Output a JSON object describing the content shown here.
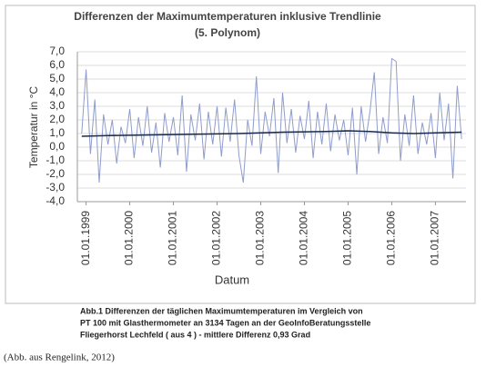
{
  "chart_data": {
    "type": "line",
    "title": "Differenzen der Maximumtemperaturen inklusive Trendlinie",
    "subtitle": "(5. Polynom)",
    "y_label": "Temperatur in °C",
    "x_label": "Datum",
    "caption": [
      "Abb.1  Differenzen der täglichen Maximumtemperaturen im Vergleich von",
      "PT 100 mit Glasthermometer an 3134 Tagen an der GeoInfoBeratungsstelle",
      "Fliegerhorst Lechfeld ( aus   4 ) - mittlere Differenz 0,93 Grad"
    ],
    "source": "(Abb. aus Rengelink, 2012)",
    "grid": true,
    "xlim": [
      1998.8,
      2007.7
    ],
    "ylim": [
      -4,
      7
    ],
    "xticks": [
      {
        "value": 1999,
        "label": "01.01.1999"
      },
      {
        "value": 2000,
        "label": "01.01.2000"
      },
      {
        "value": 2001,
        "label": "01.01.2001"
      },
      {
        "value": 2002,
        "label": "01.01.2002"
      },
      {
        "value": 2003,
        "label": "01.01.2003"
      },
      {
        "value": 2004,
        "label": "01.01.2004"
      },
      {
        "value": 2005,
        "label": "01.01.2005"
      },
      {
        "value": 2006,
        "label": "01.01.2006"
      },
      {
        "value": 2007,
        "label": "01.01.2007"
      }
    ],
    "yticks": [
      {
        "value": -4,
        "label": "-4,0"
      },
      {
        "value": -3,
        "label": "-3,0"
      },
      {
        "value": -2,
        "label": "-2,0"
      },
      {
        "value": -1,
        "label": "-1,0"
      },
      {
        "value": 0,
        "label": "0,0"
      },
      {
        "value": 1,
        "label": "1,0"
      },
      {
        "value": 2,
        "label": "2,0"
      },
      {
        "value": 3,
        "label": "3,0"
      },
      {
        "value": 4,
        "label": "4,0"
      },
      {
        "value": 5,
        "label": "5,0"
      },
      {
        "value": 6,
        "label": "6,0"
      },
      {
        "value": 7,
        "label": "7,0"
      }
    ],
    "series": [
      {
        "color": "#8f9ccc",
        "x": [
          1998.9,
          1999.0,
          1999.1,
          1999.2,
          1999.3,
          1999.4,
          1999.5,
          1999.6,
          1999.7,
          1999.8,
          1999.9,
          2000.0,
          2000.1,
          2000.2,
          2000.3,
          2000.4,
          2000.5,
          2000.6,
          2000.7,
          2000.8,
          2000.9,
          2001.0,
          2001.1,
          2001.2,
          2001.3,
          2001.4,
          2001.5,
          2001.6,
          2001.7,
          2001.8,
          2001.9,
          2002.0,
          2002.1,
          2002.2,
          2002.3,
          2002.4,
          2002.5,
          2002.6,
          2002.7,
          2002.8,
          2002.9,
          2003.0,
          2003.1,
          2003.2,
          2003.3,
          2003.4,
          2003.5,
          2003.6,
          2003.7,
          2003.8,
          2003.9,
          2004.0,
          2004.1,
          2004.2,
          2004.3,
          2004.4,
          2004.5,
          2004.6,
          2004.7,
          2004.8,
          2004.9,
          2005.0,
          2005.1,
          2005.2,
          2005.3,
          2005.4,
          2005.5,
          2005.6,
          2005.7,
          2005.8,
          2005.9,
          2006.0,
          2006.1,
          2006.2,
          2006.3,
          2006.4,
          2006.5,
          2006.6,
          2006.7,
          2006.8,
          2006.9,
          2007.0,
          2007.1,
          2007.2,
          2007.3,
          2007.4,
          2007.5,
          2007.6
        ],
        "values": [
          1.0,
          5.7,
          -0.5,
          3.5,
          -2.6,
          2.4,
          0.2,
          2.0,
          -1.2,
          1.5,
          0.3,
          2.8,
          -0.8,
          2.2,
          0.1,
          3.0,
          -0.4,
          1.8,
          -1.5,
          2.5,
          0.4,
          2.2,
          -0.6,
          3.8,
          -1.8,
          2.4,
          0.5,
          3.2,
          -0.9,
          2.6,
          0.2,
          3.0,
          -0.7,
          2.9,
          0.4,
          3.5,
          -0.6,
          -2.6,
          2.0,
          0.1,
          5.2,
          -0.5,
          2.6,
          0.8,
          3.6,
          -1.9,
          4.0,
          0.3,
          2.8,
          -0.4,
          2.3,
          0.6,
          3.4,
          -0.8,
          2.6,
          0.2,
          3.2,
          -0.3,
          2.4,
          0.5,
          2.0,
          -0.6,
          2.9,
          -2.0,
          3.0,
          0.4,
          2.6,
          5.5,
          -0.5,
          2.2,
          0.3,
          6.5,
          6.3,
          -1.0,
          2.4,
          0.1,
          3.8,
          -0.5,
          1.8,
          0.2,
          2.5,
          -0.8,
          4.0,
          0.5,
          3.2,
          -2.3,
          4.5,
          0.6
        ]
      },
      {
        "color": "#1a2a4a",
        "x": [
          1998.9,
          1999.5,
          2000.5,
          2001.5,
          2002.5,
          2003.5,
          2004.5,
          2005.0,
          2005.5,
          2006.0,
          2006.5,
          2007.0,
          2007.6
        ],
        "values": [
          0.8,
          0.85,
          0.9,
          0.95,
          1.0,
          1.1,
          1.15,
          1.2,
          1.15,
          1.05,
          1.0,
          1.05,
          1.1
        ]
      }
    ]
  }
}
